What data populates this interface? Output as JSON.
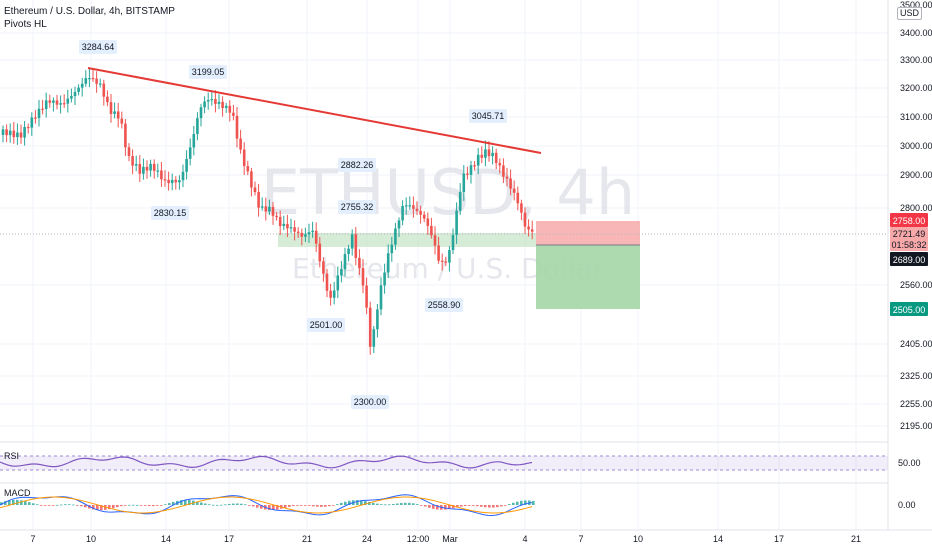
{
  "header": {
    "title": "Ethereum / U.S. Dollar, 4h, BITSTAMP",
    "indicator": "Pivots HL",
    "currency": "USD"
  },
  "watermark": {
    "symbol": "ETHUSD, 4h",
    "name": "Ethereum / U.S. Dollar"
  },
  "colors": {
    "up": "#26a69a",
    "down": "#ef5350",
    "trendline": "#e53935",
    "rsi_line": "#7e57c2",
    "macd_line": "#2962ff",
    "signal_line": "#ff9800",
    "stop_zone": "#f7a9a9",
    "target_zone": "#a5d6a7",
    "support_zone": "#c8e6c9"
  },
  "chart_data": {
    "type": "candlestick",
    "price_axis": {
      "ticks": [
        3400,
        3300,
        3200,
        3100,
        3000,
        2900,
        2800,
        2560,
        2405,
        2325,
        2255,
        2195
      ],
      "top_clipped_label": "3500.00"
    },
    "time_axis": {
      "ticks": [
        "7",
        "10",
        "14",
        "17",
        "21",
        "24",
        "12:00",
        "Mar",
        "4",
        "7",
        "10",
        "14",
        "17",
        "21"
      ]
    },
    "pivots": [
      {
        "label": "3284.64",
        "type": "high"
      },
      {
        "label": "3199.05",
        "type": "high"
      },
      {
        "label": "2830.15",
        "type": "low"
      },
      {
        "label": "2882.26",
        "type": "high"
      },
      {
        "label": "2755.32",
        "type": "high"
      },
      {
        "label": "3045.71",
        "type": "high"
      },
      {
        "label": "2501.00",
        "type": "low"
      },
      {
        "label": "2558.90",
        "type": "low"
      },
      {
        "label": "2300.00",
        "type": "low"
      }
    ],
    "trendline": {
      "from_price": 3284.64,
      "to_price": 2985
    },
    "position": {
      "stop": "2758.00",
      "last_price": "2721.49",
      "countdown": "01:58:32",
      "entry": "2689.00",
      "target": "2505.00"
    },
    "rsi": {
      "label": "RSI",
      "level": "50.00"
    },
    "macd": {
      "label": "MACD",
      "level": "0.00"
    }
  }
}
